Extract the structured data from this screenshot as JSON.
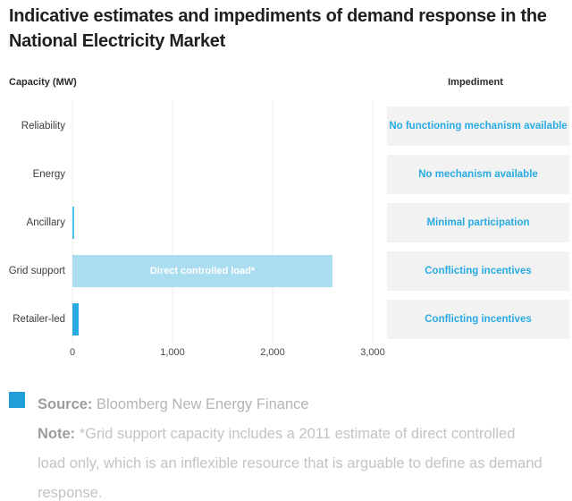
{
  "title": "Indicative estimates and impediments of demand response in the National Electricity Market",
  "column_headers": {
    "capacity": "Capacity (MW)",
    "impediment": "Impediment"
  },
  "chart_data": {
    "type": "bar",
    "orientation": "horizontal",
    "title": "Indicative estimates and impediments of demand response in the National Electricity Market",
    "xlabel": "Capacity (MW)",
    "categories": [
      "Reliability",
      "Energy",
      "Ancillary",
      "Grid support",
      "Retailer-led"
    ],
    "values": [
      0,
      0,
      20,
      2600,
      60
    ],
    "unit": "MW",
    "xlim": [
      0,
      3000
    ],
    "xticks": [
      "0",
      "1,000",
      "2,000",
      "3,000"
    ],
    "xtick_values": [
      0,
      1000,
      2000,
      3000
    ],
    "grid": true,
    "bar_labels": [
      "",
      "",
      "",
      "Direct controlled load*",
      ""
    ],
    "bar_colors": [
      "",
      "",
      "#4fc2ea",
      "#abddf1",
      "#29a9e1"
    ],
    "impediments": [
      "No functioning mechanism available",
      "No mechanism available",
      "Minimal participation",
      "Conflicting incentives",
      "Conflicting incentives"
    ]
  },
  "footer": {
    "source_label": "Source:",
    "source_text": "Bloomberg New Energy Finance",
    "note_label": "Note:",
    "note_text": "*Grid support capacity includes a 2011 estimate of direct controlled load only, which is an inflexible resource that is arguable to define as demand response."
  },
  "colors": {
    "accent_blue": "#29abe2",
    "light_blue": "#abddf1",
    "dark_bar_blue": "#29a9e1",
    "impediment_box_gray": "#f2f2f2",
    "legend_swatch_blue": "#1f9ed9",
    "title_text": "#1f1f21"
  }
}
